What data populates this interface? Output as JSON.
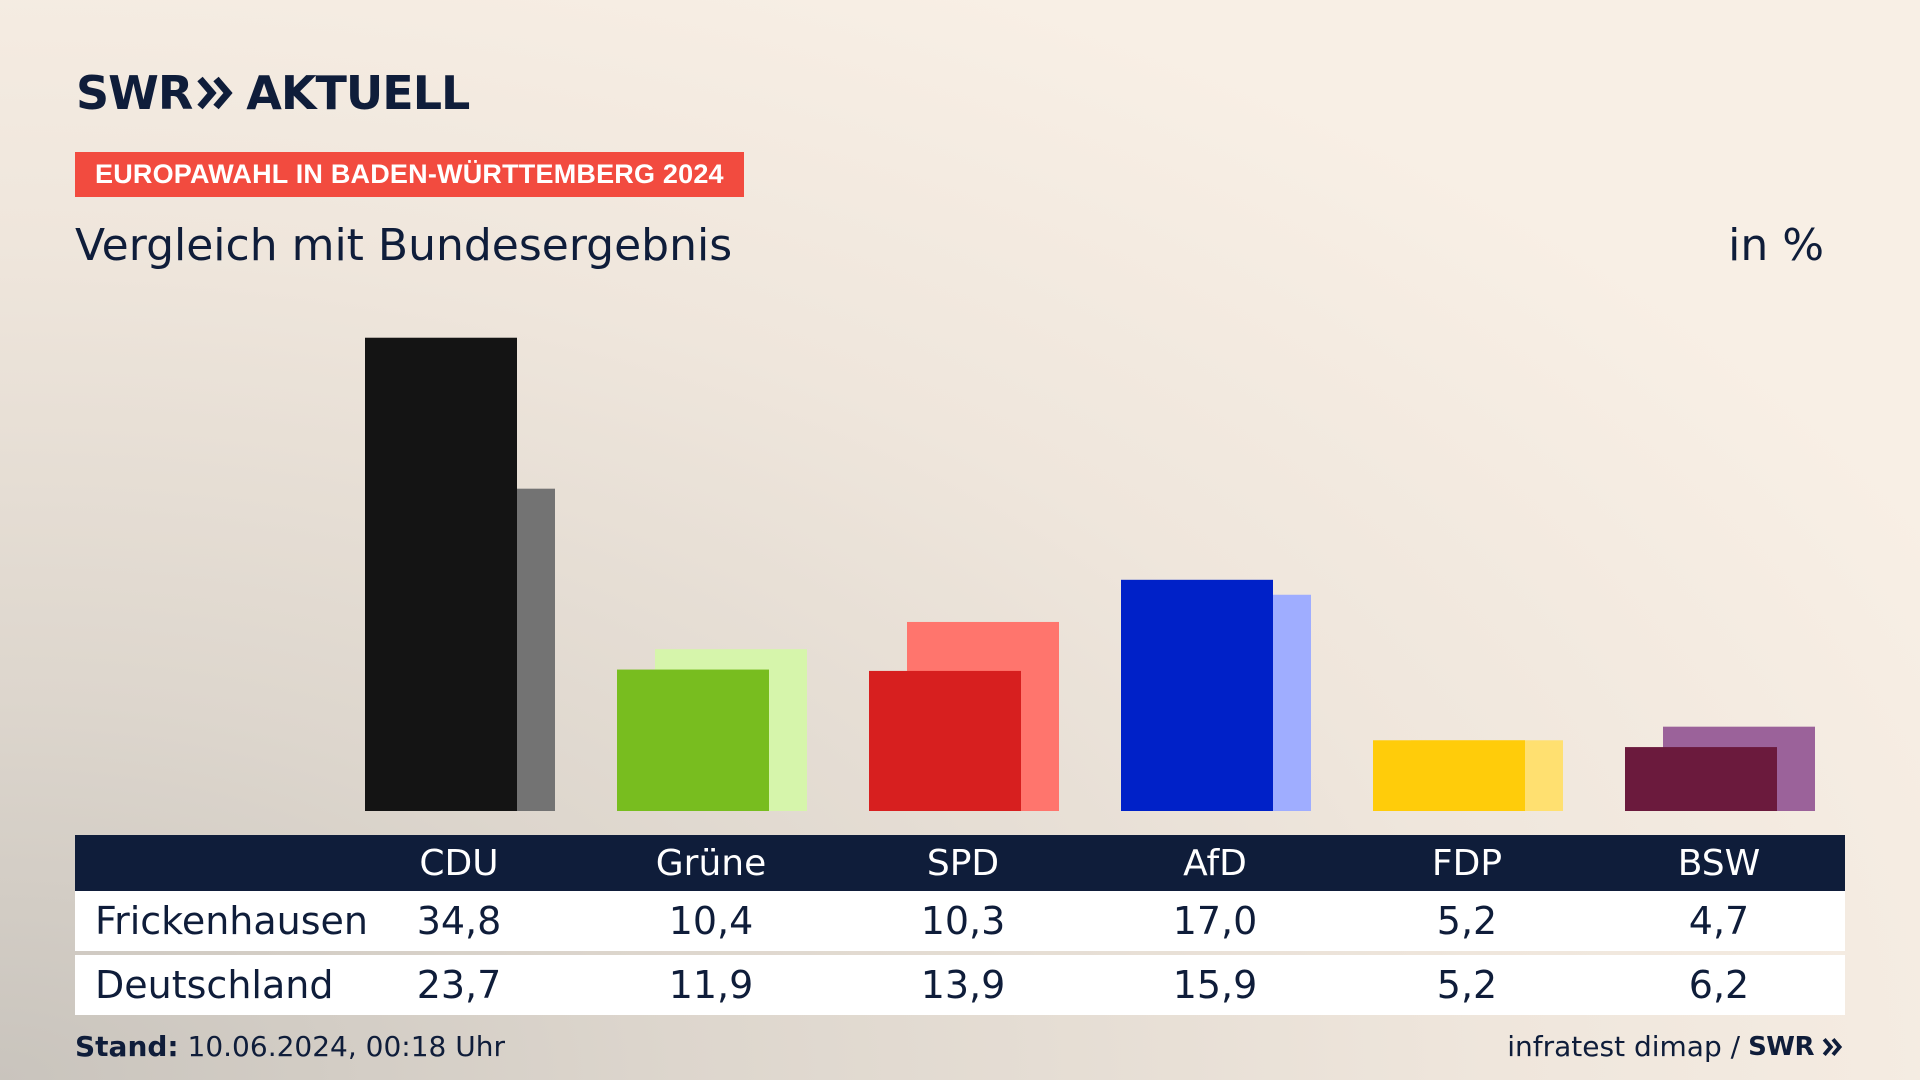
{
  "header": {
    "logo_brand": "SWR",
    "logo_name": "AKTUELL",
    "badge": "EUROPAWAHL IN BADEN-WÜRTTEMBERG 2024",
    "subtitle": "Vergleich mit Bundesergebnis",
    "unit": "in %"
  },
  "colors": {
    "navy": "#0f1d3a",
    "badge": "#f24b3f"
  },
  "chart_data": {
    "type": "bar",
    "categories": [
      "CDU",
      "Grüne",
      "SPD",
      "AfD",
      "FDP",
      "BSW"
    ],
    "series": [
      {
        "name": "Frickenhausen",
        "values": [
          34.8,
          10.4,
          10.3,
          17.0,
          5.2,
          4.7
        ],
        "display": [
          "34,8",
          "10,4",
          "10,3",
          "17,0",
          "5,2",
          "4,7"
        ],
        "colors": [
          "#141414",
          "#78bd1f",
          "#d71f1f",
          "#0021c8",
          "#ffcc0a",
          "#6b1a3d"
        ]
      },
      {
        "name": "Deutschland",
        "values": [
          23.7,
          11.9,
          13.9,
          15.9,
          5.2,
          6.2
        ],
        "display": [
          "23,7",
          "11,9",
          "13,9",
          "15,9",
          "5,2",
          "6,2"
        ],
        "colors": [
          "#737373",
          "#d6f5ab",
          "#ff756d",
          "#9fadff",
          "#ffe070",
          "#9b629a"
        ]
      }
    ],
    "ylim": [
      0,
      35
    ]
  },
  "table": {
    "headers": [
      "CDU",
      "Grüne",
      "SPD",
      "AfD",
      "FDP",
      "BSW"
    ],
    "rows": [
      {
        "label": "Frickenhausen",
        "values": [
          "34,8",
          "10,4",
          "10,3",
          "17,0",
          "5,2",
          "4,7"
        ]
      },
      {
        "label": "Deutschland",
        "values": [
          "23,7",
          "11,9",
          "13,9",
          "15,9",
          "5,2",
          "6,2"
        ]
      }
    ]
  },
  "footer": {
    "stand_label": "Stand:",
    "stand_value": "10.06.2024, 00:18 Uhr",
    "source": "infratest dimap /",
    "source_brand": "SWR"
  }
}
